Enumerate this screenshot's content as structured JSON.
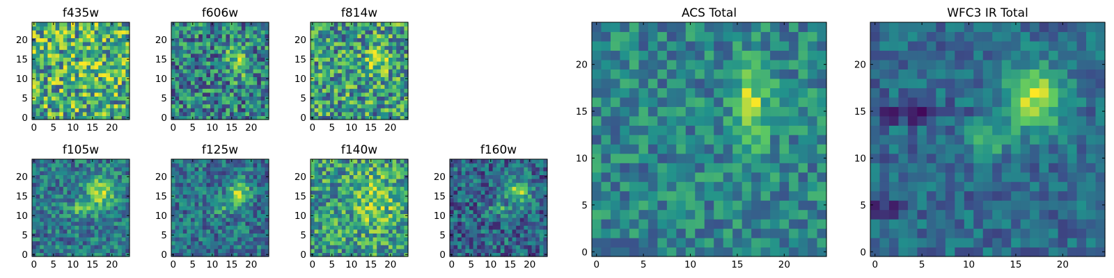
{
  "figure": {
    "title": ""
  },
  "colormap": [
    "#440154",
    "#3b528b",
    "#21918c",
    "#5ec962",
    "#fde725"
  ],
  "chart_data": [
    {
      "type": "heatmap",
      "title": "f435w",
      "grid": [
        25,
        25
      ],
      "seed": 11,
      "hotspots": [
        {
          "x": 15,
          "y": 15,
          "sx": 2.0,
          "sy": 3.2,
          "amp": 0.2
        }
      ],
      "base": 0.62,
      "noise": 0.38,
      "xlim": [
        -0.5,
        24.5
      ],
      "ylim": [
        -0.5,
        24.5
      ],
      "xticks": [
        0,
        5,
        10,
        15,
        20
      ],
      "yticks": [
        0,
        5,
        10,
        15,
        20
      ]
    },
    {
      "type": "heatmap",
      "title": "f606w",
      "grid": [
        25,
        25
      ],
      "seed": 23,
      "hotspots": [
        {
          "x": 16.5,
          "y": 15,
          "sx": 1.8,
          "sy": 3.0,
          "amp": 0.35
        }
      ],
      "base": 0.45,
      "noise": 0.32,
      "xlim": [
        -0.5,
        24.5
      ],
      "ylim": [
        -0.5,
        24.5
      ],
      "xticks": [
        0,
        5,
        10,
        15,
        20
      ],
      "yticks": [
        0,
        5,
        10,
        15,
        20
      ]
    },
    {
      "type": "heatmap",
      "title": "f814w",
      "grid": [
        25,
        25
      ],
      "seed": 37,
      "hotspots": [
        {
          "x": 16.5,
          "y": 15,
          "sx": 1.8,
          "sy": 3.0,
          "amp": 0.3
        }
      ],
      "base": 0.55,
      "noise": 0.35,
      "xlim": [
        -0.5,
        24.5
      ],
      "ylim": [
        -0.5,
        24.5
      ],
      "xticks": [
        0,
        5,
        10,
        15,
        20
      ],
      "yticks": [
        0,
        5,
        10,
        15,
        20
      ]
    },
    {
      "type": "heatmap",
      "title": "f105w",
      "grid": [
        25,
        25
      ],
      "seed": 41,
      "hotspots": [
        {
          "x": 17,
          "y": 16,
          "sx": 2.6,
          "sy": 3.0,
          "amp": 0.45
        },
        {
          "x": 12,
          "y": 12,
          "sx": 2.5,
          "sy": 1.2,
          "amp": 0.3
        }
      ],
      "base": 0.4,
      "noise": 0.22,
      "xlim": [
        -0.5,
        24.5
      ],
      "ylim": [
        -0.5,
        24.5
      ],
      "xticks": [
        0,
        5,
        10,
        15,
        20
      ],
      "yticks": [
        0,
        5,
        10,
        15,
        20
      ]
    },
    {
      "type": "heatmap",
      "title": "f125w",
      "grid": [
        25,
        25
      ],
      "seed": 53,
      "hotspots": [
        {
          "x": 17,
          "y": 15.5,
          "sx": 2.0,
          "sy": 2.4,
          "amp": 0.45
        },
        {
          "x": 12,
          "y": 12,
          "sx": 1.3,
          "sy": 1.0,
          "amp": 0.25
        }
      ],
      "base": 0.38,
      "noise": 0.22,
      "xlim": [
        -0.5,
        24.5
      ],
      "ylim": [
        -0.5,
        24.5
      ],
      "xticks": [
        0,
        5,
        10,
        15,
        20
      ],
      "yticks": [
        0,
        5,
        10,
        15,
        20
      ]
    },
    {
      "type": "heatmap",
      "title": "f140w",
      "grid": [
        25,
        25
      ],
      "seed": 67,
      "hotspots": [
        {
          "x": 16,
          "y": 14,
          "sx": 4.0,
          "sy": 5.0,
          "amp": 0.25
        }
      ],
      "base": 0.55,
      "noise": 0.3,
      "xlim": [
        -0.5,
        24.5
      ],
      "ylim": [
        -0.5,
        24.5
      ],
      "xticks": [
        0,
        5,
        10,
        15,
        20
      ],
      "yticks": [
        0,
        5,
        10,
        15,
        20
      ]
    },
    {
      "type": "heatmap",
      "title": "f160w",
      "grid": [
        25,
        25
      ],
      "seed": 79,
      "hotspots": [
        {
          "x": 17,
          "y": 16,
          "sx": 2.0,
          "sy": 2.4,
          "amp": 0.5
        },
        {
          "x": 12,
          "y": 11.5,
          "sx": 2.0,
          "sy": 1.0,
          "amp": 0.3
        }
      ],
      "base": 0.33,
      "noise": 0.24,
      "xlim": [
        -0.5,
        24.5
      ],
      "ylim": [
        -0.5,
        24.5
      ],
      "xticks": [
        0,
        5,
        10,
        15,
        20
      ],
      "yticks": [
        0,
        5,
        10,
        15,
        20
      ]
    },
    {
      "type": "heatmap",
      "title": "ACS Total",
      "grid": [
        25,
        25
      ],
      "seed": 97,
      "hotspots": [
        {
          "x": 16.5,
          "y": 16,
          "sx": 1.4,
          "sy": 3.0,
          "amp": 0.4
        }
      ],
      "base": 0.45,
      "noise": 0.2,
      "xlim": [
        -0.5,
        24.5
      ],
      "ylim": [
        -0.5,
        24.5
      ],
      "xticks": [
        0,
        5,
        10,
        15,
        20
      ],
      "yticks": [
        0,
        5,
        10,
        15,
        20
      ]
    },
    {
      "type": "heatmap",
      "title": "WFC3 IR Total",
      "grid": [
        25,
        25
      ],
      "seed": 113,
      "hotspots": [
        {
          "x": 17,
          "y": 16.5,
          "sx": 2.2,
          "sy": 2.4,
          "amp": 0.55
        },
        {
          "x": 12,
          "y": 12,
          "sx": 1.6,
          "sy": 1.0,
          "amp": 0.35
        }
      ],
      "base": 0.35,
      "noise": 0.15,
      "coldspots": [
        {
          "x": 4,
          "y": 15,
          "sx": 2.2,
          "sy": 0.8,
          "amp": 0.3
        },
        {
          "x": 1,
          "y": 5,
          "sx": 1.0,
          "sy": 0.8,
          "amp": 0.25
        }
      ],
      "xlim": [
        -0.5,
        24.5
      ],
      "ylim": [
        -0.5,
        24.5
      ],
      "xticks": [
        0,
        5,
        10,
        15,
        20
      ],
      "yticks": [
        0,
        5,
        10,
        15,
        20
      ]
    }
  ]
}
